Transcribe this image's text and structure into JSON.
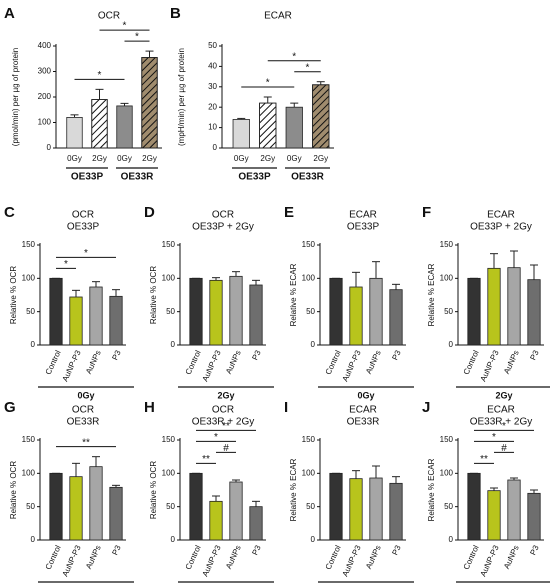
{
  "chart_data": [
    {
      "type": "bar",
      "panel": "A",
      "title": "OCR",
      "ylabel": "(pmol/min) per µg of protein",
      "categories": [
        "0Gy",
        "2Gy",
        "0Gy",
        "2Gy"
      ],
      "groups": [
        "OE33P",
        "OE33R"
      ],
      "values": [
        120,
        190,
        165,
        355
      ],
      "errors": [
        10,
        40,
        10,
        25
      ],
      "colors": [
        "#d9d9d9",
        "#ffffff",
        "#8c8c8c",
        "#a08c6e"
      ],
      "hatch": [
        false,
        true,
        false,
        true
      ],
      "ylim": [
        0,
        400
      ],
      "yticks": [
        0,
        100,
        200,
        300,
        400
      ],
      "significance": [
        {
          "label": "*",
          "pair": [
            0,
            2
          ]
        },
        {
          "label": "*",
          "pair": [
            2,
            3
          ]
        },
        {
          "label": "*",
          "pair": [
            1,
            3
          ]
        }
      ]
    },
    {
      "type": "bar",
      "panel": "B",
      "title": "ECAR",
      "ylabel": "(mpH/min) per µg of protein",
      "categories": [
        "0Gy",
        "2Gy",
        "0Gy",
        "2Gy"
      ],
      "groups": [
        "OE33P",
        "OE33R"
      ],
      "values": [
        14,
        22,
        20,
        31
      ],
      "errors": [
        0.5,
        3,
        2,
        1.5
      ],
      "colors": [
        "#d9d9d9",
        "#ffffff",
        "#8c8c8c",
        "#a08c6e"
      ],
      "hatch": [
        false,
        true,
        false,
        true
      ],
      "ylim": [
        0,
        50
      ],
      "yticks": [
        0,
        10,
        20,
        30,
        40,
        50
      ],
      "significance": [
        {
          "label": "*",
          "pair": [
            0,
            2
          ]
        },
        {
          "label": "*",
          "pair": [
            2,
            3
          ]
        },
        {
          "label": "*",
          "pair": [
            1,
            3
          ]
        }
      ]
    },
    {
      "type": "bar",
      "panel": "C",
      "title": "OCR",
      "subtitle": "OE33P",
      "ylabel": "Relative % OCR",
      "categories": [
        "Control",
        "AuNP-P3",
        "AuNPs",
        "P3"
      ],
      "groups": [
        "0Gy"
      ],
      "values": [
        100,
        72,
        87,
        73
      ],
      "errors": [
        0,
        10,
        8,
        10
      ],
      "colors": [
        "#333333",
        "#b8c41c",
        "#a6a6a6",
        "#6e6e6e"
      ],
      "hatch": [
        false,
        false,
        false,
        false
      ],
      "ylim": [
        0,
        150
      ],
      "yticks": [
        0,
        50,
        100,
        150
      ],
      "significance": [
        {
          "label": "*",
          "pair": [
            0,
            1
          ]
        },
        {
          "label": "*",
          "pair": [
            0,
            3
          ]
        }
      ]
    },
    {
      "type": "bar",
      "panel": "D",
      "title": "OCR",
      "subtitle": "OE33P + 2Gy",
      "ylabel": "Relative % OCR",
      "categories": [
        "Control",
        "AuNP-P3",
        "AuNPs",
        "P3"
      ],
      "groups": [
        "2Gy"
      ],
      "values": [
        100,
        97,
        103,
        90
      ],
      "errors": [
        0,
        4,
        7,
        7
      ],
      "colors": [
        "#333333",
        "#b8c41c",
        "#a6a6a6",
        "#6e6e6e"
      ],
      "hatch": [
        false,
        false,
        false,
        false
      ],
      "ylim": [
        0,
        150
      ],
      "yticks": [
        0,
        50,
        100,
        150
      ],
      "significance": []
    },
    {
      "type": "bar",
      "panel": "E",
      "title": "ECAR",
      "subtitle": "OE33P",
      "ylabel": "Relative % ECAR",
      "categories": [
        "Control",
        "AuNP-P3",
        "AuNPs",
        "P3"
      ],
      "groups": [
        "0Gy"
      ],
      "values": [
        100,
        87,
        100,
        83
      ],
      "errors": [
        0,
        22,
        25,
        8
      ],
      "colors": [
        "#333333",
        "#b8c41c",
        "#a6a6a6",
        "#6e6e6e"
      ],
      "hatch": [
        false,
        false,
        false,
        false
      ],
      "ylim": [
        0,
        150
      ],
      "yticks": [
        0,
        50,
        100,
        150
      ],
      "significance": []
    },
    {
      "type": "bar",
      "panel": "F",
      "title": "ECAR",
      "subtitle": "OE33P + 2Gy",
      "ylabel": "Relative % ECAR",
      "categories": [
        "Control",
        "AuNP-P3",
        "AuNPs",
        "P3"
      ],
      "groups": [
        "2Gy"
      ],
      "values": [
        100,
        115,
        116,
        98
      ],
      "errors": [
        0,
        22,
        25,
        22
      ],
      "colors": [
        "#333333",
        "#b8c41c",
        "#a6a6a6",
        "#6e6e6e"
      ],
      "hatch": [
        false,
        false,
        false,
        false
      ],
      "ylim": [
        0,
        150
      ],
      "yticks": [
        0,
        50,
        100,
        150
      ],
      "significance": []
    },
    {
      "type": "bar",
      "panel": "G",
      "title": "OCR",
      "subtitle": "OE33R",
      "ylabel": "Relative % OCR",
      "categories": [
        "Control",
        "AuNP-P3",
        "AuNPs",
        "P3"
      ],
      "groups": [
        "0Gy"
      ],
      "values": [
        100,
        95,
        110,
        79
      ],
      "errors": [
        0,
        20,
        15,
        3
      ],
      "colors": [
        "#333333",
        "#b8c41c",
        "#a6a6a6",
        "#6e6e6e"
      ],
      "hatch": [
        false,
        false,
        false,
        false
      ],
      "ylim": [
        0,
        150
      ],
      "yticks": [
        0,
        50,
        100,
        150
      ],
      "significance": [
        {
          "label": "**",
          "pair": [
            0,
            3
          ]
        }
      ]
    },
    {
      "type": "bar",
      "panel": "H",
      "title": "OCR",
      "subtitle": "OE33R + 2Gy",
      "ylabel": "Relative % OCR",
      "categories": [
        "Control",
        "AuNP-P3",
        "AuNPs",
        "P3"
      ],
      "groups": [
        "2Gy"
      ],
      "values": [
        100,
        58,
        87,
        50
      ],
      "errors": [
        0,
        8,
        3,
        8
      ],
      "colors": [
        "#333333",
        "#b8c41c",
        "#a6a6a6",
        "#6e6e6e"
      ],
      "hatch": [
        false,
        false,
        false,
        false
      ],
      "ylim": [
        0,
        150
      ],
      "yticks": [
        0,
        50,
        100,
        150
      ],
      "significance": [
        {
          "label": "**",
          "pair": [
            0,
            1
          ]
        },
        {
          "label": "#",
          "pair": [
            1,
            2
          ]
        },
        {
          "label": "*",
          "pair": [
            0,
            2
          ]
        },
        {
          "label": "**",
          "pair": [
            0,
            3
          ]
        }
      ]
    },
    {
      "type": "bar",
      "panel": "I",
      "title": "ECAR",
      "subtitle": "OE33R",
      "ylabel": "Relative % ECAR",
      "categories": [
        "Control",
        "AuNP-P3",
        "AuNPs",
        "P3"
      ],
      "groups": [
        "0Gy"
      ],
      "values": [
        100,
        92,
        93,
        85
      ],
      "errors": [
        0,
        12,
        18,
        10
      ],
      "colors": [
        "#333333",
        "#b8c41c",
        "#a6a6a6",
        "#6e6e6e"
      ],
      "hatch": [
        false,
        false,
        false,
        false
      ],
      "ylim": [
        0,
        150
      ],
      "yticks": [
        0,
        50,
        100,
        150
      ],
      "significance": []
    },
    {
      "type": "bar",
      "panel": "J",
      "title": "ECAR",
      "subtitle": "OE33R + 2Gy",
      "ylabel": "Relative % ECAR",
      "categories": [
        "Control",
        "AuNP-P3",
        "AuNPs",
        "P3"
      ],
      "groups": [
        "2Gy"
      ],
      "values": [
        100,
        74,
        90,
        70
      ],
      "errors": [
        0,
        4,
        3,
        5
      ],
      "colors": [
        "#333333",
        "#b8c41c",
        "#a6a6a6",
        "#6e6e6e"
      ],
      "hatch": [
        false,
        false,
        false,
        false
      ],
      "ylim": [
        0,
        150
      ],
      "yticks": [
        0,
        50,
        100,
        150
      ],
      "significance": [
        {
          "label": "**",
          "pair": [
            0,
            1
          ]
        },
        {
          "label": "#",
          "pair": [
            1,
            2
          ]
        },
        {
          "label": "*",
          "pair": [
            0,
            2
          ]
        },
        {
          "label": "*",
          "pair": [
            0,
            3
          ]
        }
      ]
    }
  ]
}
